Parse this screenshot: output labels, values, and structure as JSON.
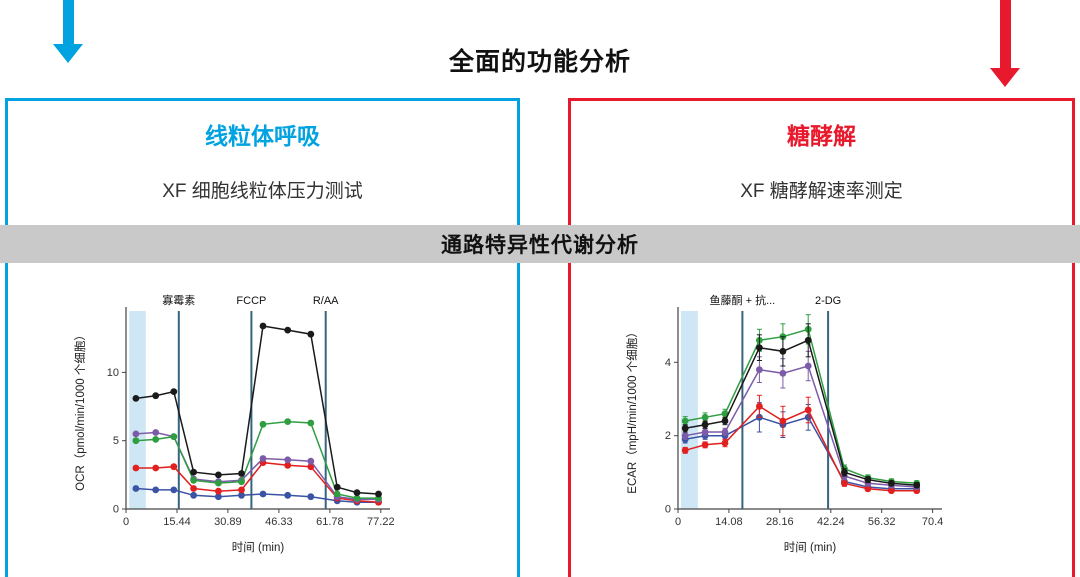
{
  "title": "全面的功能分析",
  "arrows": {
    "left_color": "#00a3e0",
    "right_color": "#e8192d"
  },
  "panels": {
    "left": {
      "title": "线粒体呼吸",
      "subtitle": "XF 细胞线粒体压力测试",
      "color": "#00a3e0"
    },
    "right": {
      "title": "糖酵解",
      "subtitle": "XF 糖酵解速率测定",
      "color": "#e8192d"
    }
  },
  "banner": {
    "label": "通路特异性代谢分析",
    "bg": "#c9c9c9"
  },
  "chart_data": [
    {
      "type": "line",
      "name": "mito-stress-test",
      "title": "",
      "xlabel": "时间 (min)",
      "ylabel": "OCR（pmol/min/1000 个细胞）",
      "xlim": [
        0,
        80
      ],
      "ylim": [
        0,
        14.5
      ],
      "xticks": [
        0,
        15.44,
        30.89,
        46.33,
        61.78,
        77.22
      ],
      "yticks": [
        0,
        5,
        10
      ],
      "shade": [
        1,
        6
      ],
      "shade_color": "#cfe7f4",
      "injection_line_color": "#35647e",
      "annotations": [
        {
          "label": "寡霉素",
          "x": 16
        },
        {
          "label": "FCCP",
          "x": 38
        },
        {
          "label": "R/AA",
          "x": 60.5
        }
      ],
      "x": [
        3,
        9,
        14.5,
        20.5,
        28,
        35,
        41.5,
        49,
        56,
        64,
        70,
        76.5
      ],
      "series": [
        {
          "name": "series-blue",
          "color": "#3a53a4",
          "y": [
            1.5,
            1.4,
            1.4,
            1.0,
            0.9,
            1.0,
            1.1,
            1.0,
            0.9,
            0.6,
            0.5,
            0.5
          ]
        },
        {
          "name": "series-red",
          "color": "#e1201f",
          "y": [
            3.0,
            3.0,
            3.1,
            1.5,
            1.3,
            1.4,
            3.4,
            3.2,
            3.1,
            0.8,
            0.6,
            0.5
          ]
        },
        {
          "name": "series-purple",
          "color": "#7c5ca8",
          "y": [
            5.5,
            5.6,
            5.3,
            2.2,
            2.0,
            2.1,
            3.7,
            3.6,
            3.5,
            0.9,
            0.7,
            0.7
          ]
        },
        {
          "name": "series-green",
          "color": "#2f9e41",
          "y": [
            5.0,
            5.1,
            5.3,
            2.1,
            1.9,
            2.0,
            6.2,
            6.4,
            6.3,
            1.1,
            0.8,
            0.8
          ]
        },
        {
          "name": "series-black",
          "color": "#1a1a1a",
          "y": [
            8.1,
            8.3,
            8.6,
            2.7,
            2.5,
            2.6,
            13.4,
            13.1,
            12.8,
            1.6,
            1.2,
            1.1
          ]
        }
      ]
    },
    {
      "type": "line",
      "name": "glycolytic-rate-assay",
      "title": "",
      "xlabel": "时间 (min)",
      "ylabel": "ECAR（mpH/min/1000 个细胞）",
      "xlim": [
        0,
        73
      ],
      "ylim": [
        0,
        5.4
      ],
      "xticks": [
        0,
        14.08,
        28.16,
        42.24,
        56.32,
        70.4
      ],
      "yticks": [
        0,
        2,
        4
      ],
      "shade": [
        0.8,
        5.5
      ],
      "shade_color": "#cfe7f4",
      "injection_line_color": "#35647e",
      "annotations": [
        {
          "label": "鱼藤酮 + 抗...",
          "x": 17.8
        },
        {
          "label": "2-DG",
          "x": 41.5
        }
      ],
      "x": [
        2,
        7.5,
        13,
        22.5,
        29,
        36,
        46,
        52.5,
        59,
        66
      ],
      "series": [
        {
          "name": "series-blue",
          "color": "#3a53a4",
          "y": [
            1.9,
            2.0,
            2.0,
            2.5,
            2.3,
            2.5,
            0.75,
            0.6,
            0.55,
            0.55
          ],
          "err": [
            0.1,
            0.1,
            0.1,
            0.4,
            0.35,
            0.35,
            0.1,
            0.07,
            0.06,
            0.06
          ]
        },
        {
          "name": "series-red",
          "color": "#e1201f",
          "y": [
            1.6,
            1.75,
            1.8,
            2.8,
            2.4,
            2.7,
            0.7,
            0.55,
            0.5,
            0.5
          ],
          "err": [
            0.08,
            0.08,
            0.1,
            0.3,
            0.4,
            0.35,
            0.08,
            0.06,
            0.05,
            0.05
          ]
        },
        {
          "name": "series-purple",
          "color": "#7c5ca8",
          "y": [
            2.0,
            2.1,
            2.1,
            3.8,
            3.7,
            3.9,
            0.9,
            0.7,
            0.65,
            0.6
          ],
          "err": [
            0.1,
            0.1,
            0.1,
            0.35,
            0.4,
            0.4,
            0.1,
            0.07,
            0.06,
            0.06
          ]
        },
        {
          "name": "series-green",
          "color": "#2f9e41",
          "y": [
            2.4,
            2.5,
            2.6,
            4.6,
            4.7,
            4.9,
            1.1,
            0.85,
            0.75,
            0.7
          ],
          "err": [
            0.12,
            0.12,
            0.12,
            0.3,
            0.35,
            0.4,
            0.1,
            0.08,
            0.07,
            0.07
          ]
        },
        {
          "name": "series-black",
          "color": "#1a1a1a",
          "y": [
            2.2,
            2.3,
            2.4,
            4.4,
            4.3,
            4.6,
            1.0,
            0.8,
            0.7,
            0.65
          ],
          "err": [
            0.1,
            0.1,
            0.1,
            0.35,
            0.4,
            0.45,
            0.1,
            0.08,
            0.07,
            0.07
          ]
        }
      ]
    }
  ]
}
